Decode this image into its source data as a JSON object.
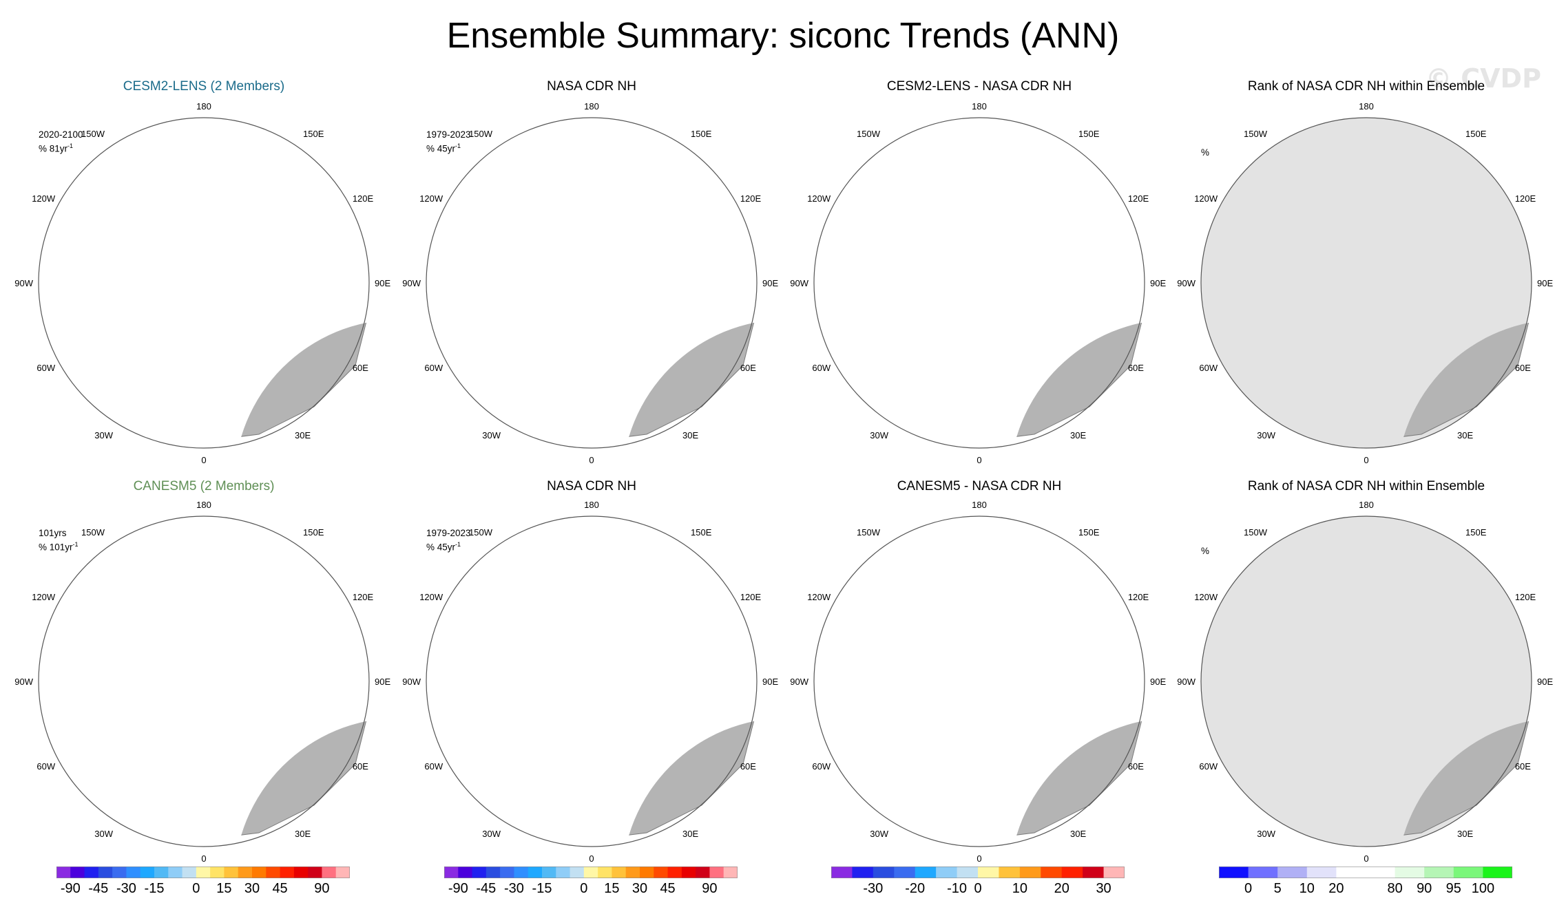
{
  "title": "Ensemble Summary: siconc Trends (ANN)",
  "watermark": "© CVDP",
  "longitude_labels": {
    "top": "180",
    "upper_left": "150W",
    "upper_right": "150E",
    "mid_upper_left": "120W",
    "mid_upper_right": "120E",
    "left": "90W",
    "right": "90E",
    "mid_lower_left": "60W",
    "mid_lower_right": "60E",
    "lower_left": "30W",
    "lower_right": "30E",
    "bottom": "0"
  },
  "panels": [
    {
      "title": "CESM2-LENS (2 Members)",
      "title_color": "#1a6b8a",
      "note1": "2020-2100",
      "note2": "% 81yr",
      "note_sup": "-1",
      "kind": "trend"
    },
    {
      "title": "NASA CDR NH",
      "title_color": "#000000",
      "note1": "1979-2023",
      "note2": "% 45yr",
      "note_sup": "-1",
      "kind": "obs"
    },
    {
      "title": "CESM2-LENS - NASA CDR NH",
      "title_color": "#000000",
      "note1": "",
      "note2": "",
      "note_sup": "",
      "kind": "diff"
    },
    {
      "title": "Rank of NASA CDR NH within Ensemble",
      "title_color": "#000000",
      "note1": "",
      "note2": "%",
      "note_sup": "",
      "kind": "rank"
    },
    {
      "title": "CANESM5 (2 Members)",
      "title_color": "#5f8f55",
      "note1": "101yrs",
      "note2": "% 101yr",
      "note_sup": "-1",
      "kind": "trend2"
    },
    {
      "title": "NASA CDR NH",
      "title_color": "#000000",
      "note1": "1979-2023",
      "note2": "% 45yr",
      "note_sup": "-1",
      "kind": "obs"
    },
    {
      "title": "CANESM5 - NASA CDR NH",
      "title_color": "#000000",
      "note1": "",
      "note2": "",
      "note_sup": "",
      "kind": "diff2"
    },
    {
      "title": "Rank of NASA CDR NH within Ensemble",
      "title_color": "#000000",
      "note1": "",
      "note2": "%",
      "note_sup": "",
      "kind": "rank2"
    }
  ],
  "colorbars": [
    {
      "colors": [
        "#8a2be2",
        "#4b00dd",
        "#2020f0",
        "#2a4de0",
        "#3a6cf0",
        "#2f8fff",
        "#1ea8ff",
        "#51b9f5",
        "#8fcdf7",
        "#c2e0f2",
        "#fff7a6",
        "#ffe366",
        "#ffc23a",
        "#ff9a1a",
        "#ff7a00",
        "#ff4a00",
        "#ff2000",
        "#e80000",
        "#d00018",
        "#ff7080",
        "#ffb6b6"
      ],
      "ticks": [
        "-90",
        "-45",
        "-30",
        "-15",
        "0",
        "15",
        "30",
        "45",
        "90"
      ]
    },
    {
      "colors": [
        "#8a2be2",
        "#4b00dd",
        "#2020f0",
        "#2a4de0",
        "#3a6cf0",
        "#2f8fff",
        "#1ea8ff",
        "#51b9f5",
        "#8fcdf7",
        "#c2e0f2",
        "#fff7a6",
        "#ffe366",
        "#ffc23a",
        "#ff9a1a",
        "#ff7a00",
        "#ff4a00",
        "#ff2000",
        "#e80000",
        "#d00018",
        "#ff7080",
        "#ffb6b6"
      ],
      "ticks": [
        "-90",
        "-45",
        "-30",
        "-15",
        "0",
        "15",
        "30",
        "45",
        "90"
      ]
    },
    {
      "colors": [
        "#8a2be2",
        "#2020f0",
        "#2a4de0",
        "#3a6cf0",
        "#1ea8ff",
        "#8fcdf7",
        "#c2e0f2",
        "#fff7a6",
        "#ffc23a",
        "#ff9a1a",
        "#ff4a00",
        "#ff2000",
        "#d00018",
        "#ffb6b6"
      ],
      "ticks": [
        "-30",
        "-20",
        "-10",
        "0",
        "10",
        "20",
        "30"
      ]
    },
    {
      "colors": [
        "#1010ff",
        "#7070ff",
        "#b0b0f5",
        "#e2e2fa",
        "#ffffff",
        "#ffffff",
        "#e4fbe4",
        "#b5f5b5",
        "#7af77a",
        "#1af41a"
      ],
      "ticks": [
        "0",
        "5",
        "10",
        "20",
        "80",
        "90",
        "95",
        "100"
      ]
    }
  ]
}
